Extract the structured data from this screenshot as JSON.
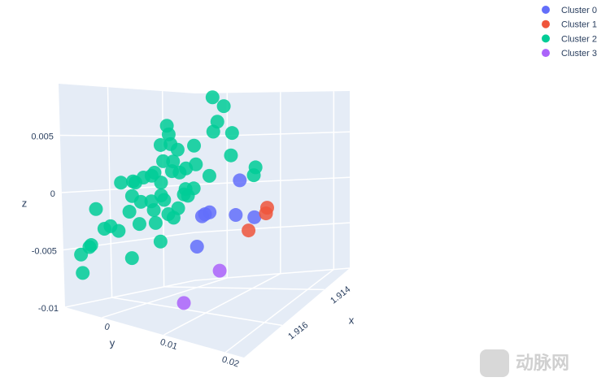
{
  "chart_data": {
    "type": "scatter3d",
    "xaxis_title": "x",
    "yaxis_title": "y",
    "zaxis_title": "z",
    "xlim": [
      1.9128,
      1.9178
    ],
    "ylim": [
      -0.006,
      0.023
    ],
    "zlim": [
      -0.01,
      0.0095
    ],
    "xticks": [
      1.914,
      1.916
    ],
    "yticks": [
      0,
      0.01,
      0.02
    ],
    "zticks": [
      -0.01,
      -0.005,
      0,
      0.005
    ],
    "grid": true,
    "legend_position": "top-right",
    "series": [
      {
        "name": "Cluster 0",
        "color": "#636efa",
        "x": [
          1.9153,
          1.9153,
          1.9153,
          1.9153,
          1.9153,
          1.9153,
          1.9153
        ],
        "y": [
          0.0131,
          0.0079,
          0.0071,
          0.0066,
          0.0124,
          0.0156,
          0.0057
        ],
        "z": [
          0.0012,
          -0.0018,
          -0.002,
          -0.0022,
          -0.0019,
          -0.002,
          -0.005
        ]
      },
      {
        "name": "Cluster 1",
        "color": "#EF553B",
        "x": [
          1.9153,
          1.9153,
          1.9153
        ],
        "y": [
          0.0178,
          0.0176,
          0.0146
        ],
        "z": [
          -0.0011,
          -0.0016,
          -0.0032
        ]
      },
      {
        "name": "Cluster 2",
        "color": "#00cc96",
        "x": [
          1.9153,
          1.9153,
          1.9153,
          1.9153,
          1.9153,
          1.9153,
          1.9153,
          1.9153,
          1.9153,
          1.9153,
          1.9153,
          1.9153,
          1.9153,
          1.9153,
          1.9153,
          1.9153,
          1.9153,
          1.9153,
          1.9153,
          1.9153,
          1.9153,
          1.9153,
          1.9153,
          1.9153,
          1.9173,
          1.9153,
          1.9153,
          1.9153,
          1.9153,
          1.9153,
          1.9153,
          1.9153,
          1.9153,
          1.9153,
          1.9153,
          1.9153,
          1.9153,
          1.9153,
          1.9153,
          1.9153,
          1.9153,
          1.9153,
          1.9153,
          1.9153,
          1.9173,
          1.9153,
          1.9173,
          1.9173,
          1.9173,
          1.9173,
          1.9173,
          1.9173,
          1.9173,
          1.9173
        ],
        "y": [
          0.0085,
          0.0104,
          0.0093,
          0.0118,
          0.0086,
          0.0007,
          0.001,
          -0.0004,
          0.0013,
          0.0053,
          0.0025,
          0.0116,
          0.0017,
          0,
          0.0039,
          0.0056,
          0.0015,
          0.0028,
          0.0158,
          0.0155,
          0.0079,
          -0.0015,
          -0.0034,
          -0.0052,
          0.0014,
          -0.0048,
          -0.0004,
          -0.002,
          0.0038,
          0.0052,
          0.0035,
          0.0042,
          -0.0004,
          -0.0054,
          -0.0039,
          -0.0021,
          0.0001,
          0.0025,
          -0.0017,
          0.0008,
          0.0017,
          -0.0059,
          -0.0042,
          -0.0014,
          0.0009,
          -0.0006,
          -0.0027,
          -0.0014,
          -0.0004,
          -0.0036,
          -0.0039,
          -0.0053,
          -0.0051,
          0.003
        ],
        "z": [
          0.0086,
          0.0078,
          0.0064,
          0.0054,
          0.0055,
          0.006,
          0.0052,
          0.0042,
          0.0043,
          0.0042,
          0.0038,
          0.0034,
          0.0027,
          0.0027,
          0.0021,
          0.0025,
          0.0018,
          0.0017,
          0.0024,
          0.0017,
          0.0015,
          0.0016,
          0.0011,
          0.0007,
          0.0012,
          0.0006,
          0.0007,
          0.0013,
          0.0002,
          0.0003,
          -0.0003,
          -0.0004,
          -0.0005,
          -0.0007,
          -0.0012,
          -0.0011,
          -0.0009,
          -0.0016,
          -0.0019,
          -0.0022,
          -0.0025,
          -0.0022,
          -0.0033,
          -0.0031,
          -0.0029,
          -0.0048,
          -0.0013,
          -0.0029,
          -0.0026,
          -0.0045,
          -0.0047,
          -0.0055,
          -0.0071,
          -0.005
        ]
      },
      {
        "name": "Cluster 3",
        "color": "#ab63fa",
        "x": [
          1.9153,
          1.9173
        ],
        "y": [
          0.0096,
          0.0114
        ],
        "z": [
          -0.007,
          -0.0078
        ]
      }
    ]
  },
  "watermark": "动脉网"
}
